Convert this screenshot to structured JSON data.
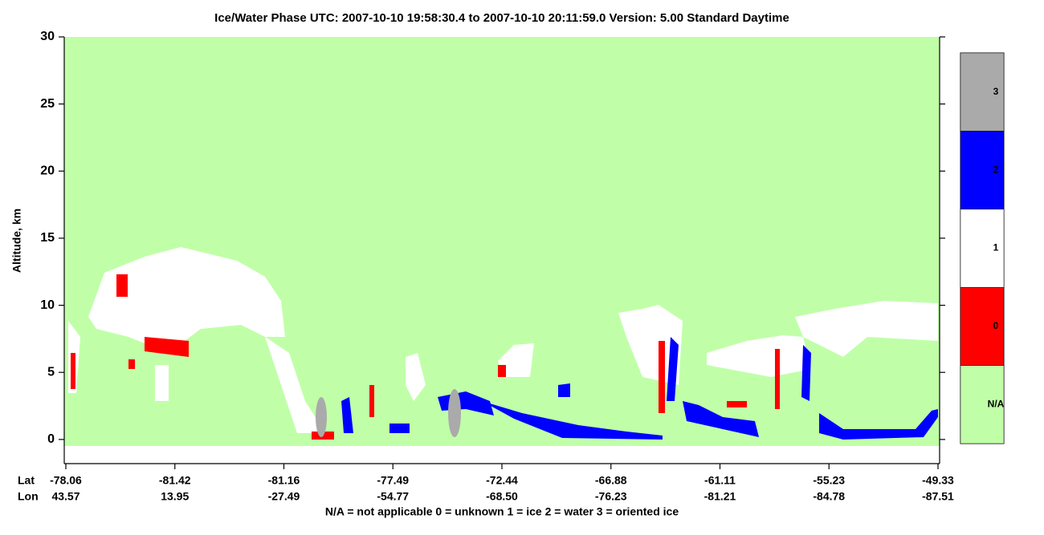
{
  "chart_data": {
    "type": "curtain",
    "title": "Ice/Water Phase    UTC:  2007-10-10    19:58:30.4  to  2007-10-10    20:11:59.0    Version: 5.00  Standard Daytime",
    "y_label": "Altitude, km",
    "ylim": [
      -1.8,
      30
    ],
    "yticks": [
      0,
      5,
      10,
      15,
      20,
      25,
      30
    ],
    "x_row_labels": [
      "Lat",
      "Lon"
    ],
    "lat": [
      "-78.06",
      "-81.42",
      "-81.16",
      "-77.49",
      "-72.44",
      "-66.88",
      "-61.11",
      "-55.23",
      "-49.33"
    ],
    "lon": [
      "43.57",
      "13.95",
      "-27.49",
      "-54.77",
      "-68.50",
      "-76.23",
      "-81.21",
      "-84.78",
      "-87.51"
    ],
    "colorbar": {
      "categories": [
        "N/A",
        "0",
        "1",
        "2",
        "3"
      ],
      "colors": [
        "#c0ffa8",
        "#ff0000",
        "#ffffff",
        "#0000ff",
        "#aaaaaa"
      ]
    },
    "footnote": "N/A = not applicable     0 = unknown     1 = ice     2 = water     3 = oriented ice"
  }
}
